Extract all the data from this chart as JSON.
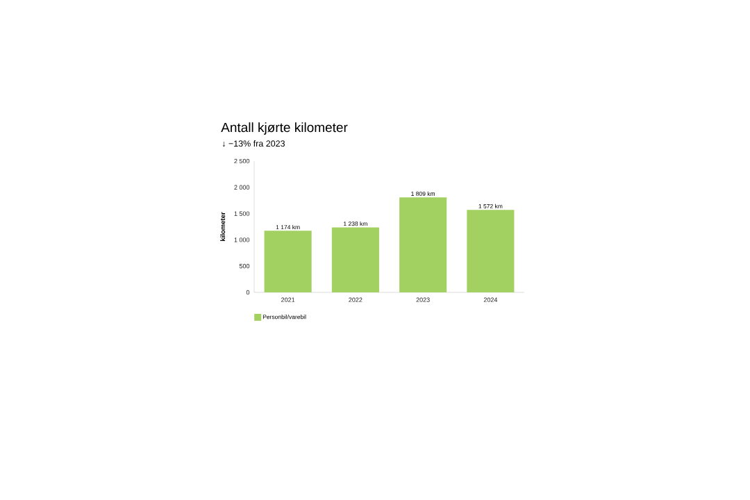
{
  "chart_data": {
    "type": "bar",
    "title": "Antall kjørte kilometer",
    "subtitle": "↓ −13% fra 2023",
    "ylabel": "kilometer",
    "categories": [
      "2021",
      "2022",
      "2023",
      "2024"
    ],
    "series": [
      {
        "name": "Personbil/varebil",
        "color": "#a2d061",
        "values": [
          1174,
          1238,
          1809,
          1572
        ],
        "value_labels": [
          "1 174 km",
          "1 238 km",
          "1 809 km",
          "1 572 km"
        ]
      }
    ],
    "ylim": [
      0,
      2500
    ],
    "yticks": [
      0,
      500,
      {
        "value": 1000,
        "label": "1 000"
      },
      {
        "value": 1500,
        "label": "1 500"
      },
      {
        "value": 2000,
        "label": "2 000"
      },
      {
        "value": 2500,
        "label": "2 500"
      }
    ],
    "legend": "bottom"
  }
}
